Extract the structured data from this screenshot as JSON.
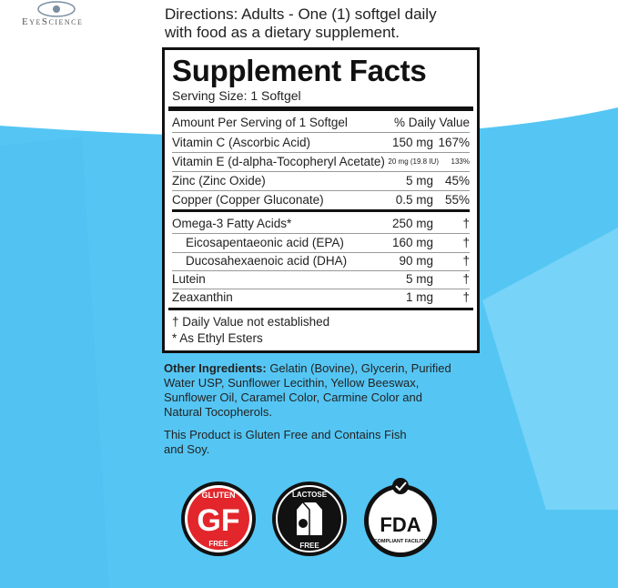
{
  "logo": "EyeScience",
  "directions": "Directions: Adults - One (1) softgel daily with food as a dietary supplement.",
  "facts": {
    "title": "Supplement Facts",
    "serving_size": "Serving Size: 1 Softgel",
    "header": [
      "Amount Per Serving of 1 Softgel",
      "% Daily Value"
    ],
    "rows": [
      {
        "name": "Vitamin C (Ascorbic Acid)",
        "amount": "150 mg",
        "dv": "167%"
      },
      {
        "name": "Vitamin E (d-alpha-Tocopheryl Acetate)",
        "amount": "20 mg (19.8 IU)",
        "dv": "133%"
      },
      {
        "name": "Zinc (Zinc Oxide)",
        "amount": "5 mg",
        "dv": "45%"
      },
      {
        "name": "Copper (Copper Gluconate)",
        "amount": "0.5 mg",
        "dv": "55%"
      },
      {
        "name": "Omega-3 Fatty Acids*",
        "amount": "250 mg",
        "dv": "†"
      },
      {
        "name": "Eicosapentaeonic acid (EPA)",
        "amount": "160 mg",
        "dv": "†"
      },
      {
        "name": "Ducosahexaenoic acid (DHA)",
        "amount": "90 mg",
        "dv": "†"
      },
      {
        "name": "Lutein",
        "amount": "5 mg",
        "dv": "†"
      },
      {
        "name": "Zeaxanthin",
        "amount": "1 mg",
        "dv": "†"
      }
    ],
    "footnotes": [
      "† Daily Value not established",
      "* As Ethyl Esters"
    ]
  },
  "other_ingredients": {
    "label": "Other Ingredients:",
    "text": "Gelatin (Bovine), Glycerin, Purified Water USP, Sunflower Lecithin, Yellow Beeswax, Sunflower Oil, Caramel Color, Carmine Color and Natural Tocopherols."
  },
  "allergen_note": "This Product is Gluten Free and Contains Fish and Soy.",
  "badges": [
    {
      "top": "GLUTEN",
      "main": "GF",
      "bottom": "FREE"
    },
    {
      "top": "LACTOSE",
      "bottom": "FREE"
    },
    {
      "main": "FDA",
      "bottom": "COMPLIANT FACILITY"
    }
  ]
}
